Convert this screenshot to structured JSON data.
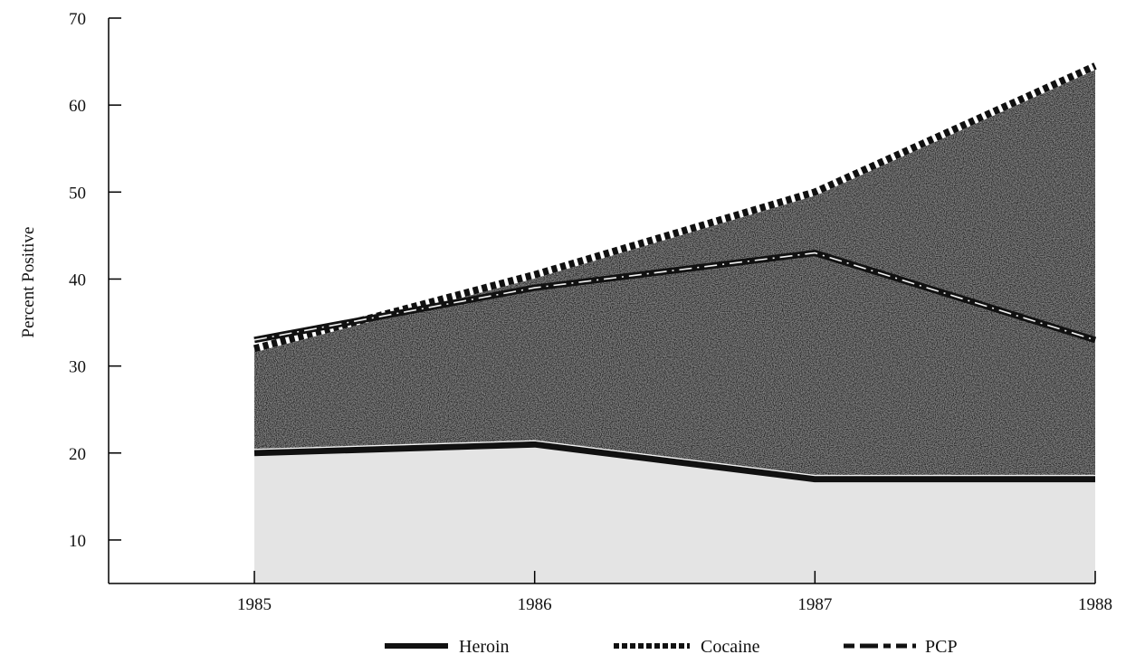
{
  "chart_data": {
    "type": "area",
    "title": "",
    "xlabel": "",
    "ylabel": "Percent Positive",
    "x": [
      1985,
      1986,
      1987,
      1988
    ],
    "x_tick_labels": [
      "1985",
      "1986",
      "1987",
      "1988"
    ],
    "y_ticks": [
      10,
      20,
      30,
      40,
      50,
      60,
      70
    ],
    "y_tick_labels": [
      "10",
      "20",
      "30",
      "40",
      "50",
      "60",
      "70"
    ],
    "ylim": [
      5,
      70
    ],
    "xlim": [
      1984.48,
      1988
    ],
    "grid": false,
    "legend_position": "bottom",
    "series": [
      {
        "name": "Heroin",
        "values": [
          20,
          21,
          17,
          17
        ],
        "line_style": "solid"
      },
      {
        "name": "Cocaine",
        "values": [
          32,
          40.5,
          50,
          64.5
        ],
        "line_style": "dashed"
      },
      {
        "name": "PCP",
        "values": [
          33,
          39,
          43,
          33
        ],
        "line_style": "dash-dot"
      }
    ],
    "colors": {
      "lower_fill": "#e4e4e4",
      "upper_fill": "#2c2c2c",
      "line": "#111111",
      "highlight": "#f2f2f2"
    }
  }
}
